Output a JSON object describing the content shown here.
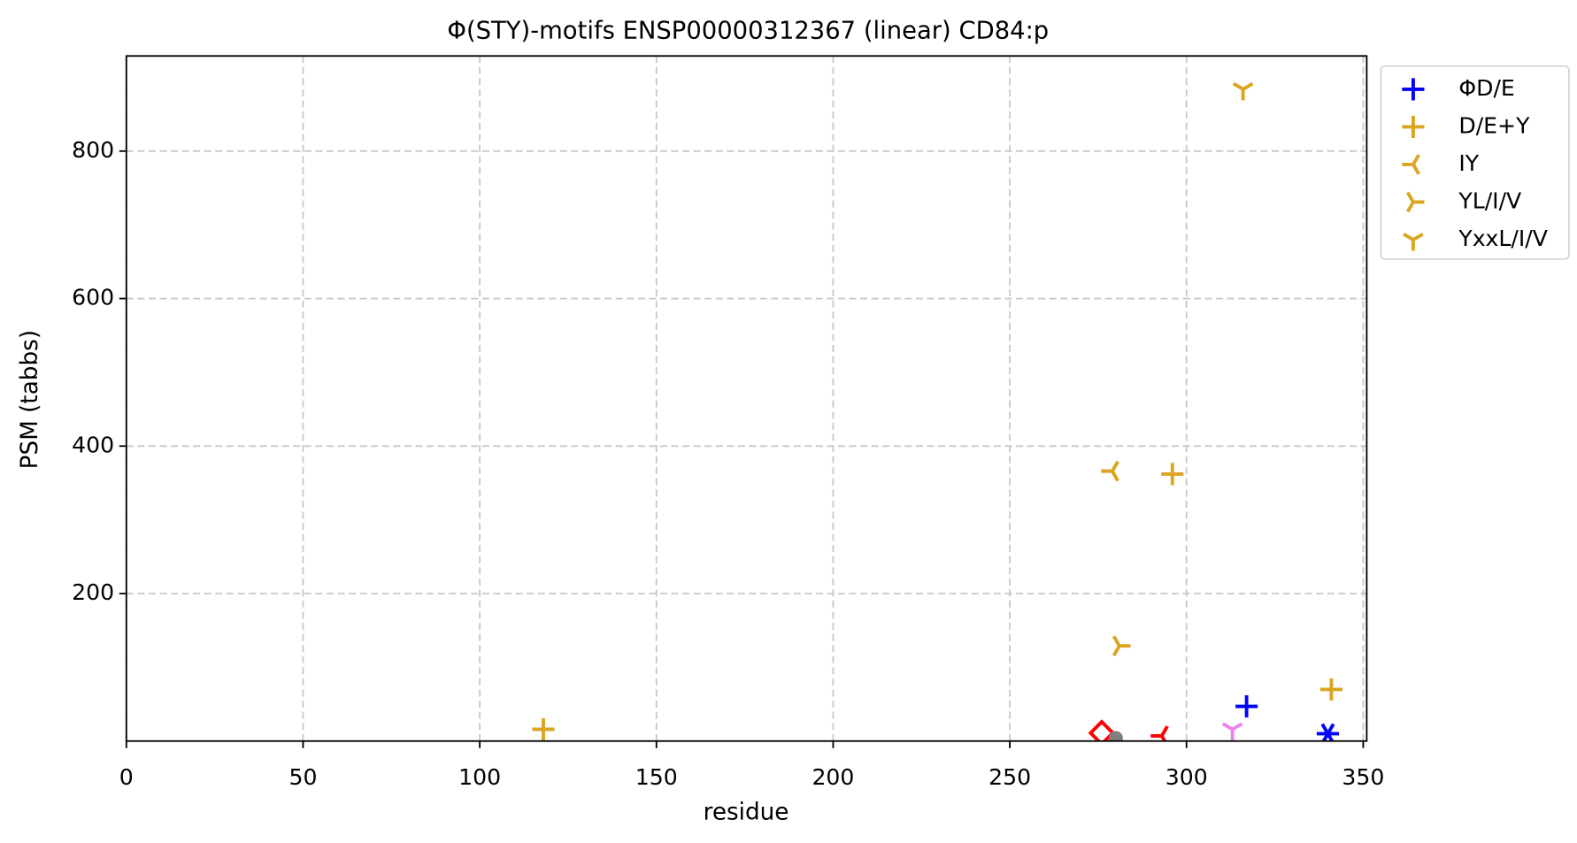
{
  "chart_data": {
    "type": "scatter",
    "title": "Φ(STY)-motifs ENSP00000312367 (linear) CD84:p",
    "x_label": "residue",
    "y_label": "PSM (tabbs)",
    "xlim": [
      0,
      351
    ],
    "ylim": [
      0,
      929
    ],
    "xticks": [
      0,
      50,
      100,
      150,
      200,
      250,
      300,
      350
    ],
    "yticks": [
      200,
      400,
      600,
      800
    ],
    "grid": true,
    "legend": "outside upper right",
    "series": [
      {
        "name": "ΦD/E",
        "color": "#0000ff",
        "marker": "plus",
        "x": [
          317
        ],
        "y": [
          47
        ]
      },
      {
        "name": "D/E+Y",
        "color": "#daa520",
        "marker": "plus",
        "x": [
          118,
          296,
          341
        ],
        "y": [
          16,
          362,
          70
        ]
      },
      {
        "name": "IY",
        "color": "#daa520",
        "marker": "tri_left",
        "x": [
          279
        ],
        "y": [
          366
        ]
      },
      {
        "name": "YL/I/V",
        "color": "#daa520",
        "marker": "tri_right",
        "x": [
          281
        ],
        "y": [
          129
        ]
      },
      {
        "name": "YxxL/I/V",
        "color": "#daa520",
        "marker": "tri_down",
        "x": [
          316
        ],
        "y": [
          884
        ]
      },
      {
        "color": "#ff0000",
        "marker": "diamond",
        "x": [
          276
        ],
        "y": [
          11
        ]
      },
      {
        "color": "#ff0000",
        "marker": "tri_left",
        "x": [
          293
        ],
        "y": [
          7
        ]
      },
      {
        "color": "#ee82ee",
        "marker": "tri_down",
        "x": [
          313
        ],
        "y": [
          16
        ]
      },
      {
        "color": "#0000ff",
        "marker": "star",
        "x": [
          340
        ],
        "y": [
          10
        ]
      },
      {
        "color": "#808080",
        "marker": "circle",
        "x": [
          280
        ],
        "y": [
          4
        ]
      }
    ]
  }
}
